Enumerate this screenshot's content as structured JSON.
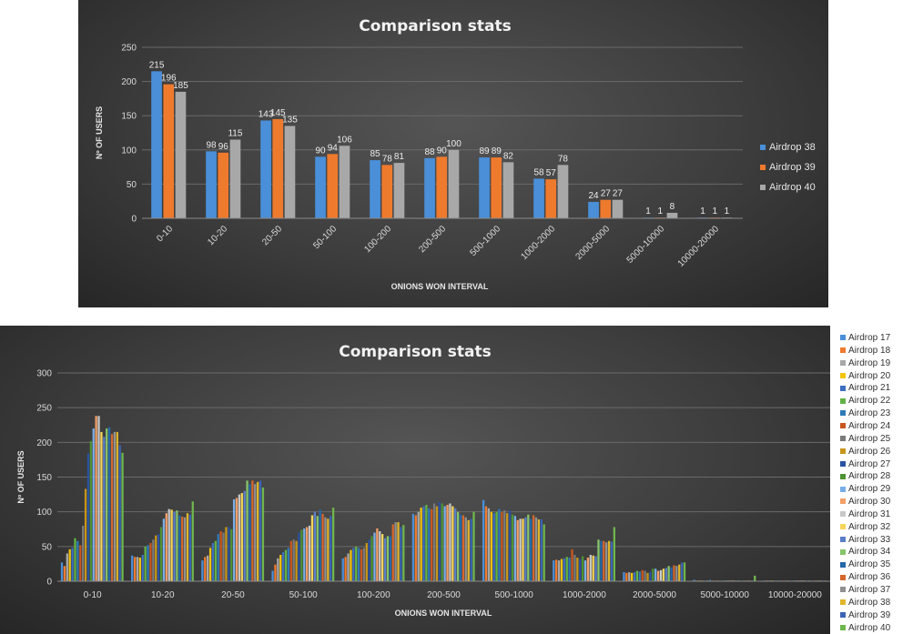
{
  "chart_data": [
    {
      "type": "bar",
      "title": "Comparison stats",
      "xlabel": "ONIONS WON INTERVAL",
      "ylabel": "Nº OF USERS",
      "ylim": [
        0,
        250
      ],
      "yticks": [
        0,
        50,
        100,
        150,
        200,
        250
      ],
      "grid": true,
      "legend_position": "right",
      "categories": [
        "0-10",
        "10-20",
        "20-50",
        "50-100",
        "100-200",
        "200-500",
        "500-1000",
        "1000-2000",
        "2000-5000",
        "5000-10000",
        "10000-20000"
      ],
      "series": [
        {
          "name": "Airdrop 38",
          "color": "#4a8fd8",
          "values": [
            215,
            98,
            143,
            90,
            85,
            88,
            89,
            58,
            24,
            1,
            1
          ]
        },
        {
          "name": "Airdrop 39",
          "color": "#ee7a2e",
          "values": [
            196,
            96,
            145,
            94,
            78,
            90,
            89,
            57,
            27,
            1,
            1
          ]
        },
        {
          "name": "Airdrop 40",
          "color": "#a8a8a8",
          "values": [
            185,
            115,
            135,
            106,
            81,
            100,
            82,
            78,
            27,
            8,
            1
          ]
        }
      ]
    },
    {
      "type": "bar",
      "title": "Comparison stats",
      "xlabel": "ONIONS WON INTERVAL",
      "ylabel": "Nº OF USERS",
      "ylim": [
        0,
        300
      ],
      "yticks": [
        0,
        50,
        100,
        150,
        200,
        250,
        300
      ],
      "grid": true,
      "legend_position": "right",
      "categories": [
        "0-10",
        "10-20",
        "20-50",
        "50-100",
        "100-200",
        "200-500",
        "500-1000",
        "1000-2000",
        "2000-5000",
        "5000-10000",
        "10000-20000"
      ],
      "series": [
        {
          "name": "Airdrop 17",
          "color": "#4a8fd8",
          "values": [
            27,
            37,
            30,
            15,
            33,
            97,
            117,
            30,
            13,
            2,
            1
          ]
        },
        {
          "name": "Airdrop 18",
          "color": "#ee7a2e",
          "values": [
            22,
            35,
            35,
            24,
            35,
            95,
            108,
            31,
            12,
            1,
            1
          ]
        },
        {
          "name": "Airdrop 19",
          "color": "#a8a8a8",
          "values": [
            40,
            35,
            37,
            33,
            40,
            100,
            105,
            30,
            13,
            1,
            1
          ]
        },
        {
          "name": "Airdrop 20",
          "color": "#f2c40f",
          "values": [
            46,
            34,
            48,
            38,
            45,
            106,
            100,
            32,
            12,
            1,
            1
          ]
        },
        {
          "name": "Airdrop 21",
          "color": "#3e6fbf",
          "values": [
            48,
            38,
            55,
            42,
            48,
            108,
            98,
            33,
            13,
            1,
            1
          ]
        },
        {
          "name": "Airdrop 22",
          "color": "#62b346",
          "values": [
            62,
            50,
            58,
            45,
            50,
            110,
            100,
            35,
            15,
            1,
            1
          ]
        },
        {
          "name": "Airdrop 23",
          "color": "#2f7ab8",
          "values": [
            58,
            52,
            68,
            48,
            48,
            105,
            104,
            34,
            14,
            2,
            1
          ]
        },
        {
          "name": "Airdrop 24",
          "color": "#c9571e",
          "values": [
            52,
            55,
            72,
            58,
            46,
            104,
            100,
            46,
            16,
            1,
            1
          ]
        },
        {
          "name": "Airdrop 25",
          "color": "#7a7a7a",
          "values": [
            80,
            60,
            70,
            60,
            48,
            112,
            102,
            38,
            15,
            1,
            1
          ]
        },
        {
          "name": "Airdrop 26",
          "color": "#c7961a",
          "values": [
            133,
            66,
            78,
            58,
            55,
            108,
            98,
            34,
            12,
            1,
            1
          ]
        },
        {
          "name": "Airdrop 27",
          "color": "#2a52a0",
          "values": [
            184,
            68,
            78,
            70,
            60,
            114,
            102,
            32,
            14,
            1,
            1
          ]
        },
        {
          "name": "Airdrop 28",
          "color": "#4f9234",
          "values": [
            202,
            78,
            75,
            74,
            65,
            112,
            96,
            36,
            18,
            1,
            1
          ]
        },
        {
          "name": "Airdrop 29",
          "color": "#79aee6",
          "values": [
            220,
            90,
            118,
            76,
            70,
            108,
            94,
            30,
            18,
            1,
            1
          ]
        },
        {
          "name": "Airdrop 30",
          "color": "#f3a069",
          "values": [
            238,
            98,
            120,
            78,
            76,
            110,
            88,
            34,
            15,
            1,
            1
          ]
        },
        {
          "name": "Airdrop 31",
          "color": "#c8c8c8",
          "values": [
            238,
            104,
            125,
            80,
            72,
            112,
            90,
            38,
            16,
            1,
            1
          ]
        },
        {
          "name": "Airdrop 32",
          "color": "#f7d55a",
          "values": [
            215,
            103,
            127,
            95,
            68,
            108,
            90,
            37,
            18,
            1,
            1
          ]
        },
        {
          "name": "Airdrop 33",
          "color": "#5b7fc7",
          "values": [
            208,
            100,
            130,
            100,
            62,
            105,
            92,
            36,
            19,
            1,
            1
          ]
        },
        {
          "name": "Airdrop 34",
          "color": "#86c46a",
          "values": [
            220,
            102,
            145,
            94,
            65,
            100,
            96,
            60,
            22,
            1,
            1
          ]
        },
        {
          "name": "Airdrop 35",
          "color": "#2569a8",
          "values": [
            222,
            95,
            140,
            103,
            65,
            96,
            90,
            58,
            20,
            1,
            1
          ]
        },
        {
          "name": "Airdrop 36",
          "color": "#d5672c",
          "values": [
            212,
            93,
            145,
            97,
            82,
            95,
            95,
            58,
            23,
            1,
            1
          ]
        },
        {
          "name": "Airdrop 37",
          "color": "#909090",
          "values": [
            215,
            92,
            140,
            92,
            85,
            92,
            92,
            56,
            22,
            1,
            1
          ]
        },
        {
          "name": "Airdrop 38",
          "color": "#e0b52a",
          "values": [
            215,
            98,
            143,
            90,
            85,
            88,
            89,
            58,
            24,
            1,
            1
          ]
        },
        {
          "name": "Airdrop 39",
          "color": "#3b64b5",
          "values": [
            196,
            96,
            145,
            94,
            78,
            90,
            89,
            57,
            27,
            1,
            1
          ]
        },
        {
          "name": "Airdrop 40",
          "color": "#6fb64d",
          "values": [
            185,
            115,
            135,
            106,
            81,
            100,
            82,
            78,
            27,
            8,
            1
          ]
        }
      ]
    }
  ]
}
